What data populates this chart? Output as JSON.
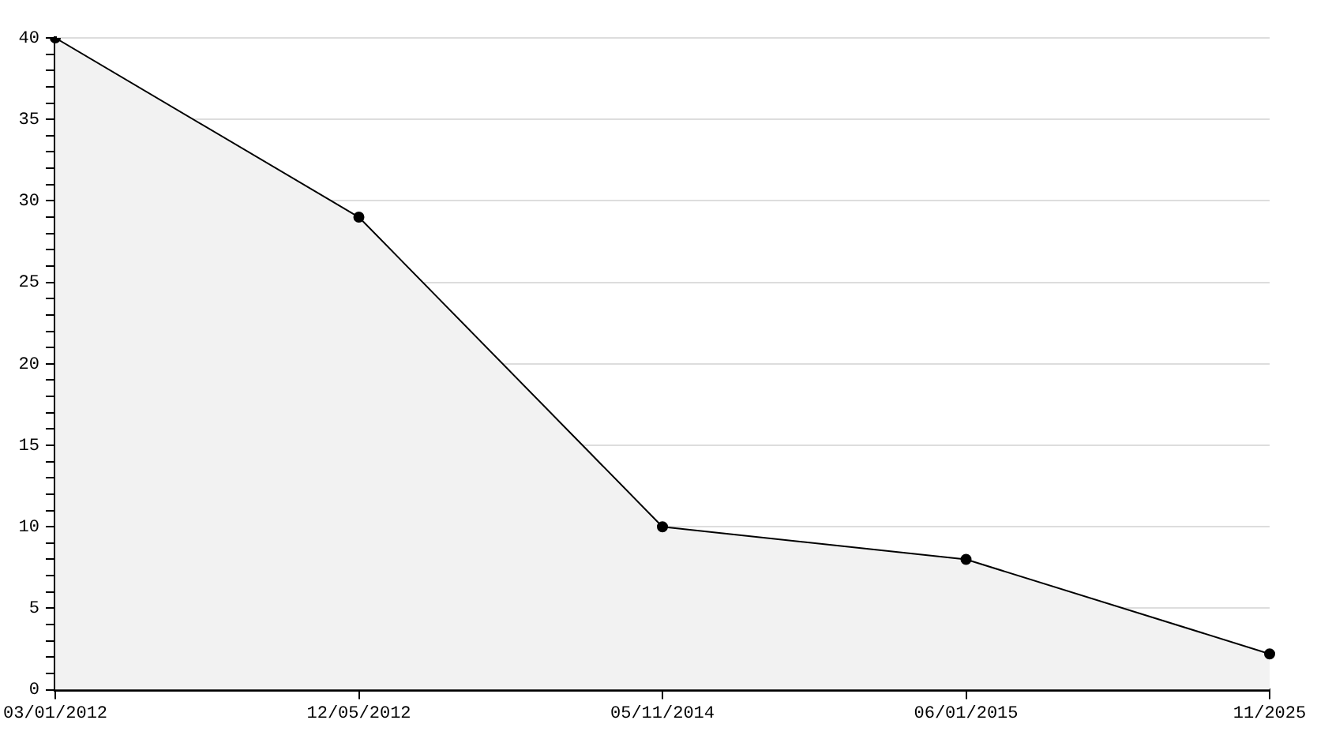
{
  "chart_data": {
    "type": "area",
    "categories": [
      "03/01/2012",
      "12/05/2012",
      "05/11/2014",
      "06/01/2015",
      "11/2025"
    ],
    "series": [
      {
        "color": "#f2f2f2",
        "values": [
          40,
          29,
          10,
          8,
          2.2
        ]
      }
    ],
    "ylim": [
      0,
      40
    ],
    "yticks": [
      0,
      {
        "value": 1,
        "label": null
      },
      {
        "value": 2,
        "label": null
      },
      {
        "value": 3,
        "label": null
      },
      {
        "value": 4,
        "label": null
      },
      5,
      {
        "value": 6,
        "label": null
      },
      {
        "value": 7,
        "label": null
      },
      {
        "value": 8,
        "label": null
      },
      {
        "value": 9,
        "label": null
      },
      10,
      {
        "value": 11,
        "label": null
      },
      {
        "value": 12,
        "label": null
      },
      {
        "value": 13,
        "label": null
      },
      {
        "value": 14,
        "label": null
      },
      15,
      {
        "value": 16,
        "label": null
      },
      {
        "value": 17,
        "label": null
      },
      {
        "value": 18,
        "label": null
      },
      {
        "value": 19,
        "label": null
      },
      20,
      {
        "value": 21,
        "label": null
      },
      {
        "value": 22,
        "label": null
      },
      {
        "value": 23,
        "label": null
      },
      {
        "value": 24,
        "label": null
      },
      25,
      {
        "value": 26,
        "label": null
      },
      {
        "value": 27,
        "label": null
      },
      {
        "value": 28,
        "label": null
      },
      {
        "value": 29,
        "label": null
      },
      30,
      {
        "value": 31,
        "label": null
      },
      {
        "value": 32,
        "label": null
      },
      {
        "value": 33,
        "label": null
      },
      {
        "value": 34,
        "label": null
      },
      35,
      {
        "value": 36,
        "label": null
      },
      {
        "value": 37,
        "label": null
      },
      {
        "value": 38,
        "label": null
      },
      {
        "value": 39,
        "label": null
      },
      40
    ],
    "grid": "y",
    "legend": false,
    "marker": "circle",
    "line_style": "solid"
  }
}
